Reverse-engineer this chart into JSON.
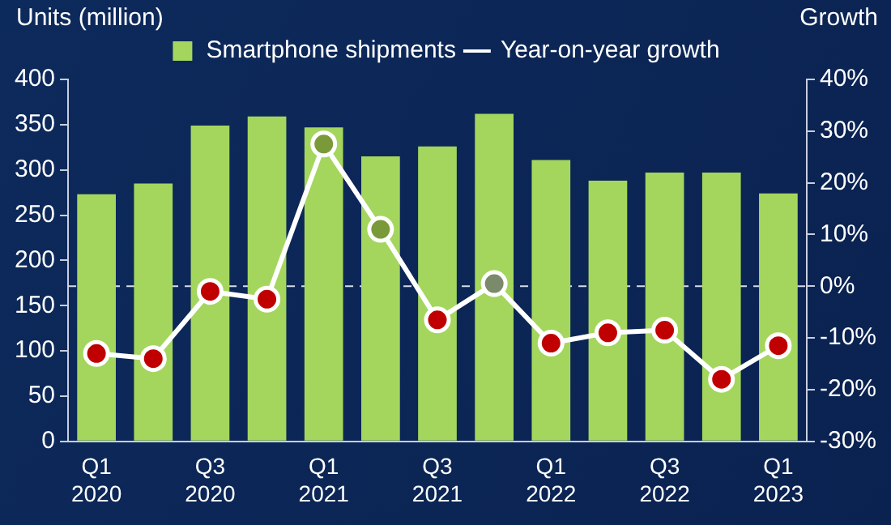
{
  "chart_data": {
    "type": "bar",
    "ylabel": "Units (million)",
    "y2label": "Growth",
    "categories": [
      "Q1 2020",
      null,
      "Q3 2020",
      null,
      "Q1 2021",
      null,
      "Q3 2021",
      null,
      "Q1 2022",
      null,
      "Q3 2022",
      null,
      "Q1 2023"
    ],
    "series": [
      {
        "name": "Smartphone shipments",
        "color": "#a4d65e",
        "values": [
          273,
          285,
          349,
          359,
          347,
          315,
          326,
          362,
          311,
          288,
          297,
          297,
          274
        ]
      },
      {
        "name": "Year-on-year growth",
        "type": "line",
        "axis": "y2",
        "color": "#ffffff",
        "colors": [
          "#c00000",
          "#c00000",
          "#c00000",
          "#c00000",
          "#7a9a3a",
          "#7a9a3a",
          "#c00000",
          "#7a8a6a",
          "#c00000",
          "#c00000",
          "#c00000",
          "#c00000",
          "#c00000"
        ],
        "values": [
          -13,
          -14,
          -1,
          -2.5,
          27.5,
          11,
          -6.5,
          0.5,
          -11,
          -9,
          -8.5,
          -18,
          -11.5
        ]
      }
    ],
    "ylim": [
      0,
      400
    ],
    "yticks": [
      0,
      50,
      100,
      150,
      200,
      250,
      300,
      350,
      400
    ],
    "y2lim": [
      -30,
      40
    ],
    "y2ticks": [
      {
        "value": -30,
        "label": "-30%"
      },
      {
        "value": -20,
        "label": "-20%"
      },
      {
        "value": -10,
        "label": "-10%"
      },
      {
        "value": 0,
        "label": "0%"
      },
      {
        "value": 10,
        "label": "10%"
      },
      {
        "value": 20,
        "label": "20%"
      },
      {
        "value": 30,
        "label": "30%"
      },
      {
        "value": 40,
        "label": "40%"
      }
    ],
    "ref_lines": [
      {
        "axis": "y2",
        "value": 0,
        "color": "#d8dce8",
        "line_style": "dashed"
      }
    ],
    "legend": "top",
    "marker": "circle",
    "grid": false
  }
}
